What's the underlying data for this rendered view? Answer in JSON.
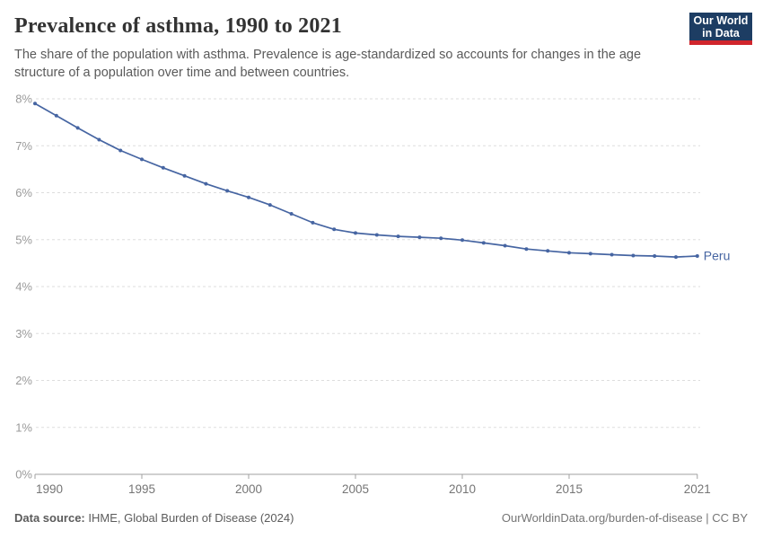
{
  "header": {
    "title": "Prevalence of asthma, 1990 to 2021",
    "subtitle": "The share of the population with asthma. Prevalence is age-standardized so accounts for changes in the age structure of a population over time and between countries.",
    "logo": {
      "line1": "Our World",
      "line2": "in Data",
      "bg_color": "#1d3d63",
      "accent_color": "#d0252c"
    }
  },
  "chart_data": {
    "type": "line",
    "title": "Prevalence of asthma, 1990 to 2021",
    "xlabel": "",
    "ylabel": "",
    "unit": "%",
    "xlim": [
      1990,
      2021
    ],
    "ylim": [
      0,
      8
    ],
    "grid": "horizontal-dashed",
    "legend_position": "end-of-line",
    "x_ticks": [
      1990,
      1995,
      2000,
      2005,
      2010,
      2015,
      2021
    ],
    "y_ticks": [
      "0%",
      "1%",
      "2%",
      "3%",
      "4%",
      "5%",
      "6%",
      "7%",
      "8%"
    ],
    "x": [
      1990,
      1991,
      1992,
      1993,
      1994,
      1995,
      1996,
      1997,
      1998,
      1999,
      2000,
      2001,
      2002,
      2003,
      2004,
      2005,
      2006,
      2007,
      2008,
      2009,
      2010,
      2011,
      2012,
      2013,
      2014,
      2015,
      2016,
      2017,
      2018,
      2019,
      2020,
      2021
    ],
    "series": [
      {
        "name": "Peru",
        "color": "#4665a2",
        "values": [
          7.9,
          7.64,
          7.38,
          7.13,
          6.9,
          6.71,
          6.53,
          6.36,
          6.19,
          6.04,
          5.9,
          5.74,
          5.55,
          5.36,
          5.22,
          5.14,
          5.1,
          5.07,
          5.05,
          5.03,
          4.99,
          4.93,
          4.87,
          4.8,
          4.76,
          4.72,
          4.7,
          4.68,
          4.66,
          4.65,
          4.63,
          4.65
        ]
      }
    ],
    "axis_colors": {
      "grid": "#dddddd",
      "axis": "#a1a1a1",
      "y_label": "#9a9a9a",
      "x_label": "#757575"
    }
  },
  "footer": {
    "source_label": "Data source:",
    "source_text": " IHME, Global Burden of Disease (2024)",
    "rights": "OurWorldinData.org/burden-of-disease | CC BY"
  }
}
